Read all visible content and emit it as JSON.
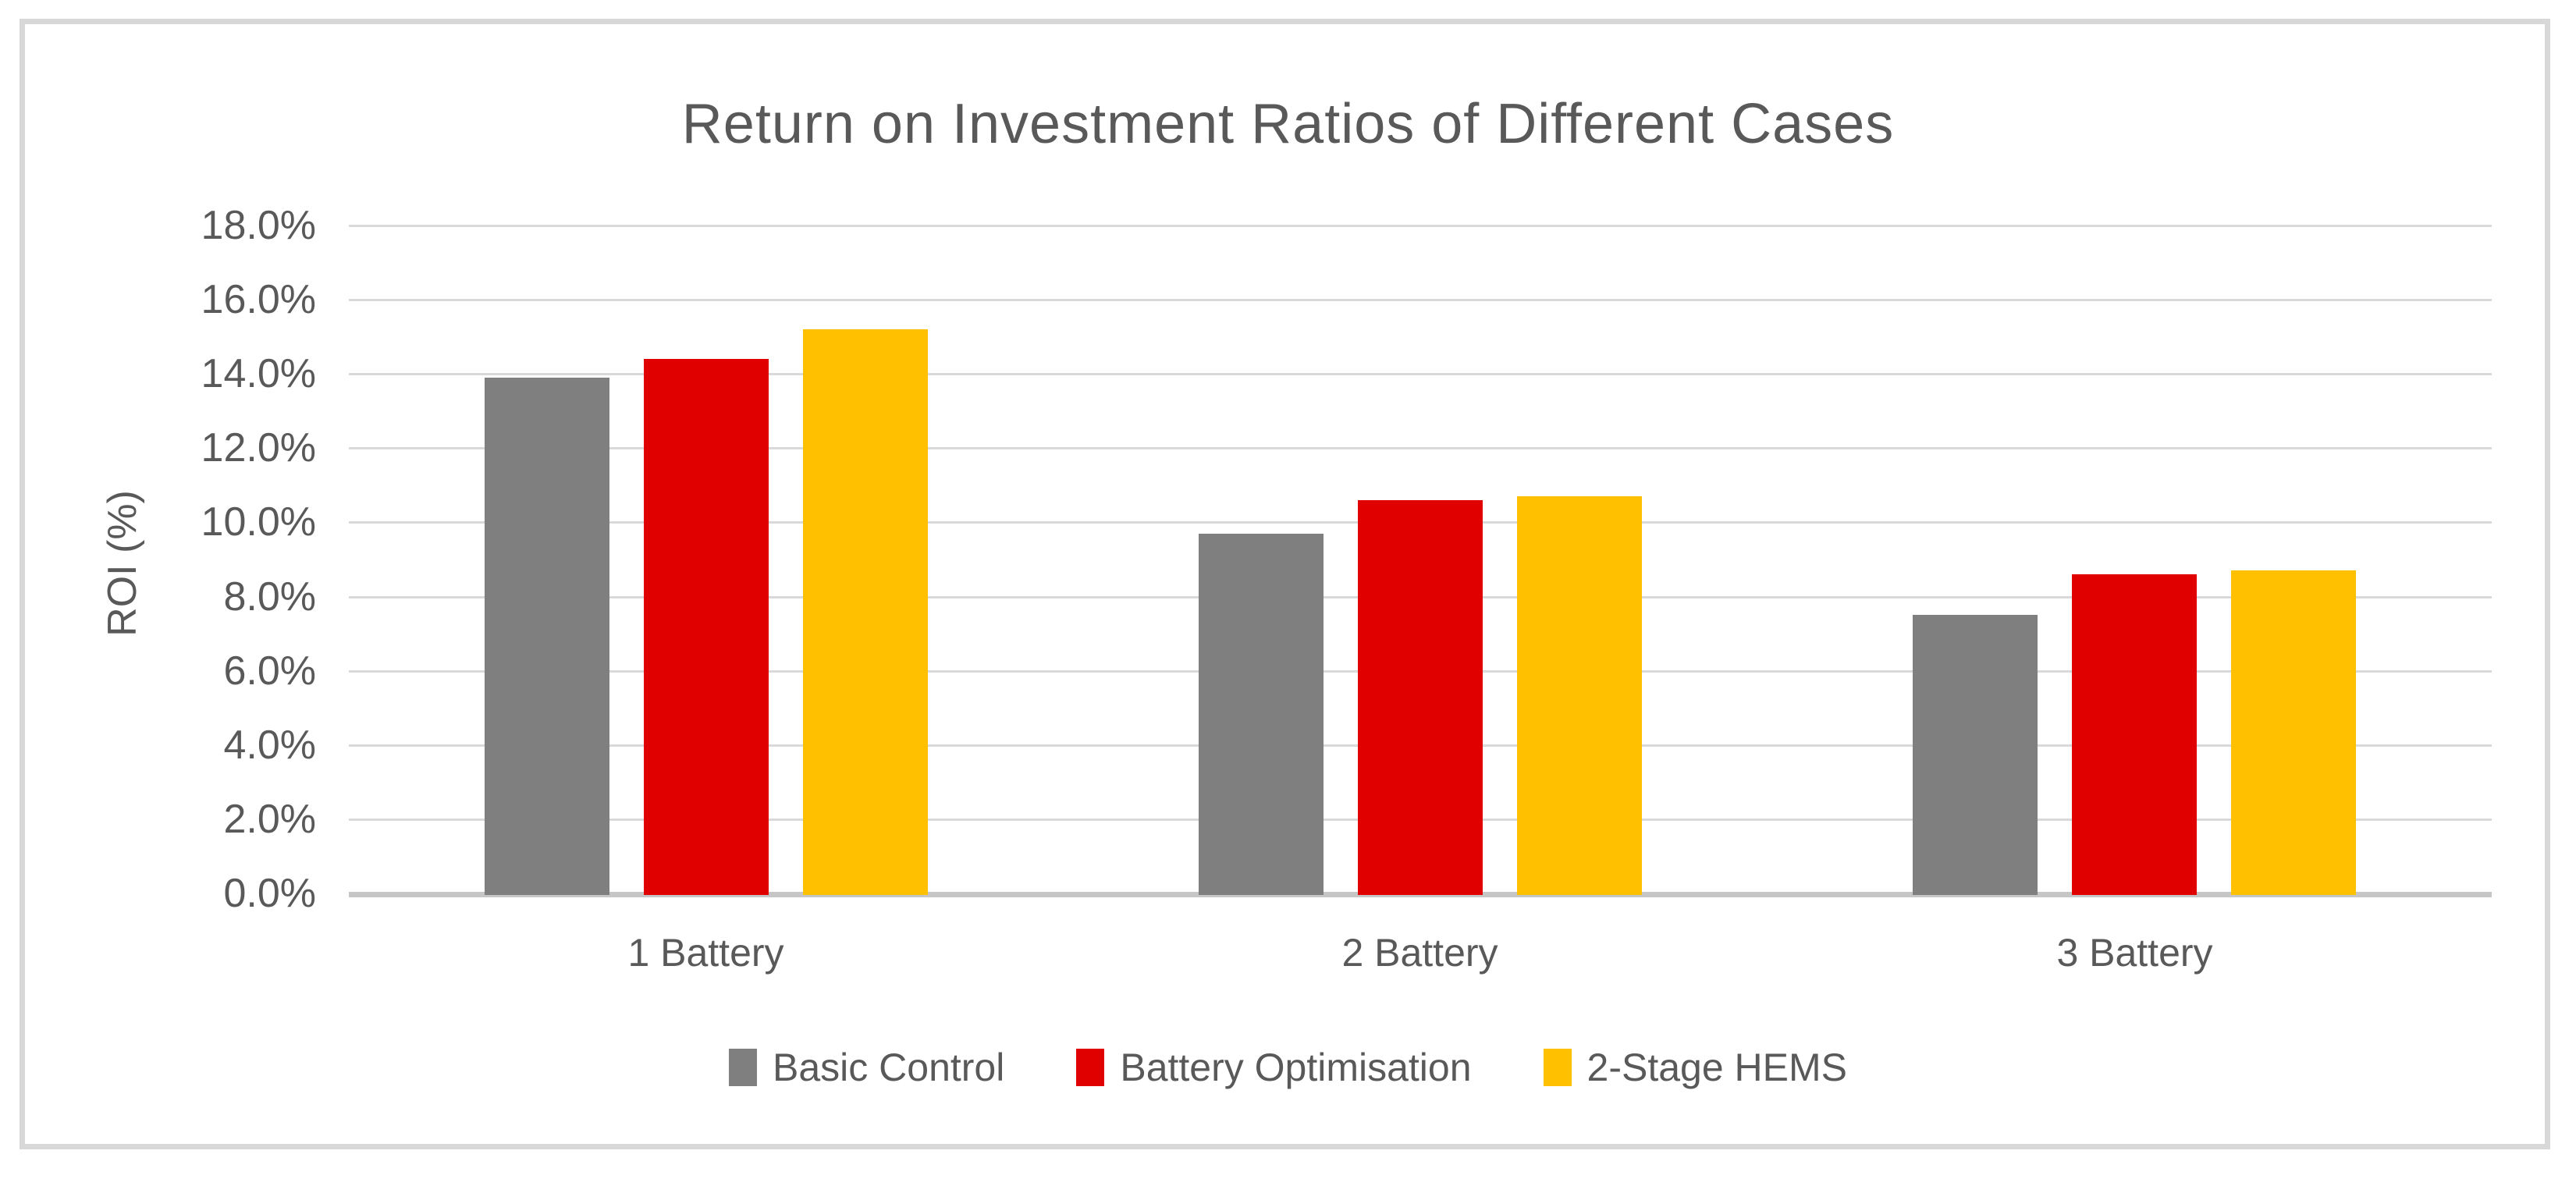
{
  "chart_data": {
    "type": "bar",
    "title": "Return on Investment Ratios of Different Cases",
    "xlabel": "",
    "ylabel": "ROI (%)",
    "categories": [
      "1 Battery",
      "2 Battery",
      "3 Battery"
    ],
    "series": [
      {
        "name": "Basic Control",
        "color": "#7f7f7f",
        "values": [
          13.9,
          9.7,
          7.5
        ]
      },
      {
        "name": "Battery Optimisation",
        "color": "#e00000",
        "values": [
          14.4,
          10.6,
          8.6
        ]
      },
      {
        "name": "2-Stage HEMS",
        "color": "#ffc000",
        "values": [
          15.2,
          10.7,
          8.7
        ]
      }
    ],
    "ylim": [
      0,
      18
    ],
    "ytick_step": 2,
    "ytick_labels": [
      "0.0%",
      "2.0%",
      "4.0%",
      "6.0%",
      "8.0%",
      "10.0%",
      "12.0%",
      "14.0%",
      "16.0%",
      "18.0%"
    ],
    "grid": "horizontal",
    "legend_position": "bottom",
    "colors": {
      "text": "#595959",
      "gridline": "#d9d9d9",
      "axis_line": "#c6c6c6",
      "frame_border": "#d8d8d8",
      "background": "#ffffff"
    }
  }
}
